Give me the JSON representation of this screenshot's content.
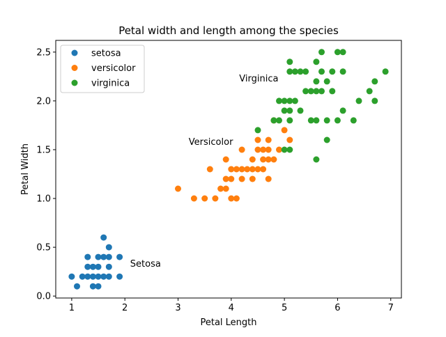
{
  "chart_data": {
    "type": "scatter",
    "title": "Petal width and length among the species",
    "xlabel": "Petal Length",
    "ylabel": "Petal Width",
    "xlim": [
      0.7,
      7.2
    ],
    "ylim": [
      -0.02,
      2.62
    ],
    "xticks": [
      1,
      2,
      3,
      4,
      5,
      6,
      7
    ],
    "xtick_labels": [
      "1",
      "2",
      "3",
      "4",
      "5",
      "6",
      "7"
    ],
    "yticks": [
      0.0,
      0.5,
      1.0,
      1.5,
      2.0,
      2.5
    ],
    "ytick_labels": [
      "0.0",
      "0.5",
      "1.0",
      "1.5",
      "2.0",
      "2.5"
    ],
    "grid": false,
    "legend_position": "top-left",
    "series": [
      {
        "name": "setosa",
        "color": "#1f77b4",
        "points": [
          [
            1.0,
            0.2
          ],
          [
            1.1,
            0.1
          ],
          [
            1.2,
            0.2
          ],
          [
            1.3,
            0.2
          ],
          [
            1.3,
            0.3
          ],
          [
            1.3,
            0.4
          ],
          [
            1.4,
            0.1
          ],
          [
            1.4,
            0.2
          ],
          [
            1.4,
            0.3
          ],
          [
            1.5,
            0.1
          ],
          [
            1.5,
            0.2
          ],
          [
            1.5,
            0.3
          ],
          [
            1.5,
            0.4
          ],
          [
            1.6,
            0.2
          ],
          [
            1.6,
            0.4
          ],
          [
            1.6,
            0.6
          ],
          [
            1.7,
            0.2
          ],
          [
            1.7,
            0.3
          ],
          [
            1.7,
            0.4
          ],
          [
            1.7,
            0.5
          ],
          [
            1.9,
            0.2
          ],
          [
            1.9,
            0.4
          ]
        ]
      },
      {
        "name": "versicolor",
        "color": "#ff7f0e",
        "points": [
          [
            3.0,
            1.1
          ],
          [
            3.3,
            1.0
          ],
          [
            3.5,
            1.0
          ],
          [
            3.6,
            1.3
          ],
          [
            3.7,
            1.0
          ],
          [
            3.8,
            1.1
          ],
          [
            3.9,
            1.1
          ],
          [
            3.9,
            1.2
          ],
          [
            3.9,
            1.4
          ],
          [
            4.0,
            1.0
          ],
          [
            4.0,
            1.2
          ],
          [
            4.0,
            1.3
          ],
          [
            4.1,
            1.0
          ],
          [
            4.1,
            1.3
          ],
          [
            4.2,
            1.2
          ],
          [
            4.2,
            1.3
          ],
          [
            4.2,
            1.5
          ],
          [
            4.3,
            1.3
          ],
          [
            4.4,
            1.2
          ],
          [
            4.4,
            1.3
          ],
          [
            4.4,
            1.4
          ],
          [
            4.5,
            1.3
          ],
          [
            4.5,
            1.5
          ],
          [
            4.5,
            1.6
          ],
          [
            4.6,
            1.3
          ],
          [
            4.6,
            1.4
          ],
          [
            4.6,
            1.5
          ],
          [
            4.7,
            1.2
          ],
          [
            4.7,
            1.4
          ],
          [
            4.7,
            1.5
          ],
          [
            4.7,
            1.6
          ],
          [
            4.8,
            1.4
          ],
          [
            4.8,
            1.8
          ],
          [
            4.9,
            1.5
          ],
          [
            5.0,
            1.7
          ],
          [
            5.1,
            1.6
          ]
        ]
      },
      {
        "name": "virginica",
        "color": "#2ca02c",
        "points": [
          [
            4.5,
            1.7
          ],
          [
            4.8,
            1.8
          ],
          [
            4.9,
            1.8
          ],
          [
            4.9,
            2.0
          ],
          [
            5.0,
            1.5
          ],
          [
            5.0,
            1.9
          ],
          [
            5.0,
            2.0
          ],
          [
            5.1,
            1.5
          ],
          [
            5.1,
            1.8
          ],
          [
            5.1,
            1.9
          ],
          [
            5.1,
            2.0
          ],
          [
            5.1,
            2.3
          ],
          [
            5.1,
            2.4
          ],
          [
            5.2,
            2.0
          ],
          [
            5.2,
            2.3
          ],
          [
            5.3,
            1.9
          ],
          [
            5.3,
            2.3
          ],
          [
            5.4,
            2.1
          ],
          [
            5.4,
            2.3
          ],
          [
            5.5,
            1.8
          ],
          [
            5.5,
            2.1
          ],
          [
            5.6,
            1.4
          ],
          [
            5.6,
            1.8
          ],
          [
            5.6,
            2.1
          ],
          [
            5.6,
            2.2
          ],
          [
            5.6,
            2.4
          ],
          [
            5.7,
            2.1
          ],
          [
            5.7,
            2.3
          ],
          [
            5.7,
            2.5
          ],
          [
            5.8,
            1.6
          ],
          [
            5.8,
            1.8
          ],
          [
            5.8,
            2.2
          ],
          [
            5.9,
            2.1
          ],
          [
            5.9,
            2.3
          ],
          [
            6.0,
            1.8
          ],
          [
            6.0,
            2.5
          ],
          [
            6.1,
            1.9
          ],
          [
            6.1,
            2.3
          ],
          [
            6.1,
            2.5
          ],
          [
            6.3,
            1.8
          ],
          [
            6.4,
            2.0
          ],
          [
            6.6,
            2.1
          ],
          [
            6.7,
            2.0
          ],
          [
            6.7,
            2.2
          ],
          [
            6.9,
            2.3
          ]
        ]
      }
    ],
    "annotations": [
      {
        "text": "Setosa",
        "x": 2.1,
        "y": 0.3
      },
      {
        "text": "Versicolor",
        "x": 3.2,
        "y": 1.55
      },
      {
        "text": "Virginica",
        "x": 4.15,
        "y": 2.2
      }
    ]
  }
}
